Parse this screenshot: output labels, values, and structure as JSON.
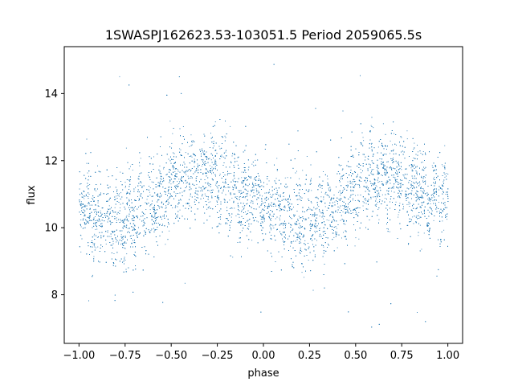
{
  "chart_data": {
    "type": "scatter",
    "title": "1SWASPJ162623.53-103051.5 Period 2059065.5s",
    "xlabel": "phase",
    "ylabel": "flux",
    "xlim": [
      -1.08,
      1.08
    ],
    "ylim": [
      6.55,
      15.4
    ],
    "x_ticks": [
      -1.0,
      -0.75,
      -0.5,
      -0.25,
      0.0,
      0.25,
      0.5,
      0.75,
      1.0
    ],
    "x_tick_labels": [
      "−1.00",
      "−0.75",
      "−0.50",
      "−0.25",
      "0.00",
      "0.25",
      "0.50",
      "0.75",
      "1.00"
    ],
    "y_ticks": [
      8,
      10,
      12,
      14
    ],
    "y_tick_labels": [
      "8",
      "10",
      "12",
      "14"
    ],
    "grid": false,
    "legend": "none",
    "marker_color": "#1f77b4",
    "series": [
      {
        "x_range": [
          -1.0,
          1.0
        ],
        "folded": true,
        "envelope": {
          "phase": [
            0.0,
            0.05,
            0.1,
            0.15,
            0.2,
            0.25,
            0.3,
            0.35,
            0.4,
            0.45,
            0.5,
            0.55,
            0.6,
            0.65,
            0.7,
            0.75,
            0.8,
            0.85,
            0.9,
            0.95,
            1.0
          ],
          "flux_center": [
            10.8,
            10.6,
            10.3,
            10.2,
            10.1,
            10.3,
            10.4,
            10.5,
            10.7,
            11.0,
            11.3,
            11.4,
            11.5,
            11.6,
            11.5,
            11.4,
            11.2,
            11.0,
            10.9,
            10.9,
            10.8
          ],
          "flux_spread": [
            0.8,
            0.9,
            0.9,
            0.9,
            1.0,
            1.0,
            0.9,
            0.9,
            0.9,
            0.9,
            0.9,
            0.9,
            0.9,
            0.9,
            0.9,
            0.9,
            0.9,
            0.9,
            0.9,
            0.9,
            0.8
          ]
        },
        "flux_min": 6.9,
        "flux_max": 15.1
      }
    ]
  }
}
